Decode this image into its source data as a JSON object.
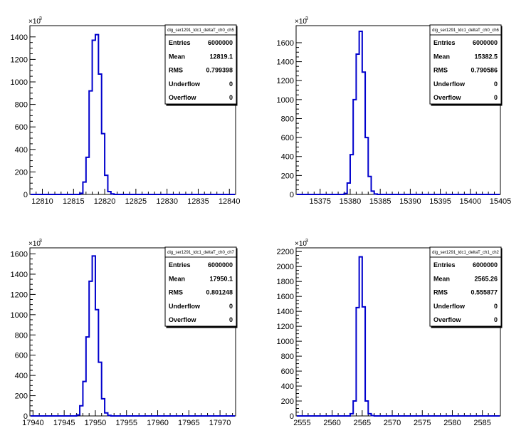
{
  "chart_data": [
    {
      "type": "bar",
      "histogram_name": "dig_ser1291_tdc1_deltaT_ch0_ch5",
      "stats": {
        "Entries": "6000000",
        "Mean": "12819.1",
        "RMS": "0.799398",
        "Underflow": "0",
        "Overflow": "0"
      },
      "y_exponent_label": "×10",
      "y_exponent_power": "3",
      "xlim": [
        12808,
        12841
      ],
      "ylim": [
        0,
        1500
      ],
      "x_ticks": [
        12810,
        12815,
        12820,
        12825,
        12830,
        12835,
        12840
      ],
      "y_ticks": [
        0,
        200,
        400,
        600,
        800,
        1000,
        1200,
        1400
      ],
      "bin_edges": [
        12816,
        12816.5,
        12817,
        12817.5,
        12818,
        12818.5,
        12819,
        12819.5,
        12820,
        12820.5,
        12821,
        12821.5
      ],
      "values": [
        10,
        110,
        330,
        920,
        1370,
        1420,
        1070,
        540,
        170,
        25,
        5
      ]
    },
    {
      "type": "bar",
      "histogram_name": "dig_ser1291_tdc1_deltaT_ch0_ch6",
      "stats": {
        "Entries": "6000000",
        "Mean": "15382.5",
        "RMS": "0.790586",
        "Underflow": "0",
        "Overflow": "0"
      },
      "y_exponent_label": "×10",
      "y_exponent_power": "3",
      "xlim": [
        15371,
        15405
      ],
      "ylim": [
        0,
        1780
      ],
      "x_ticks": [
        15375,
        15380,
        15385,
        15390,
        15395,
        15400,
        15405
      ],
      "y_ticks": [
        0,
        200,
        400,
        600,
        800,
        1000,
        1200,
        1400,
        1600
      ],
      "bin_edges": [
        15379,
        15379.5,
        15380,
        15380.5,
        15381,
        15381.5,
        15382,
        15382.5,
        15383,
        15383.5,
        15384,
        15384.5
      ],
      "values": [
        10,
        120,
        420,
        1000,
        1480,
        1720,
        1290,
        600,
        190,
        35,
        5
      ]
    },
    {
      "type": "bar",
      "histogram_name": "dig_ser1291_tdc1_deltaT_ch0_ch7",
      "stats": {
        "Entries": "6000000",
        "Mean": "17950.1",
        "RMS": "0.801248",
        "Underflow": "0",
        "Overflow": "0"
      },
      "y_exponent_label": "×10",
      "y_exponent_power": "3",
      "xlim": [
        17939.5,
        17972.5
      ],
      "ylim": [
        0,
        1660
      ],
      "x_ticks": [
        17940,
        17945,
        17950,
        17955,
        17960,
        17965,
        17970
      ],
      "y_ticks": [
        0,
        200,
        400,
        600,
        800,
        1000,
        1200,
        1400,
        1600
      ],
      "bin_edges": [
        17947,
        17947.5,
        17948,
        17948.5,
        17949,
        17949.5,
        17950,
        17950.5,
        17951,
        17951.5,
        17952,
        17952.5
      ],
      "values": [
        10,
        100,
        340,
        780,
        1330,
        1580,
        1050,
        530,
        170,
        30,
        5
      ]
    },
    {
      "type": "bar",
      "histogram_name": "dig_ser1291_tdc1_deltaT_ch1_ch2",
      "stats": {
        "Entries": "6000000",
        "Mean": "2565.26",
        "RMS": "0.555877",
        "Underflow": "0",
        "Overflow": "0"
      },
      "y_exponent_label": "×10",
      "y_exponent_power": "3",
      "xlim": [
        2554,
        2588
      ],
      "ylim": [
        0,
        2250
      ],
      "x_ticks": [
        2555,
        2560,
        2565,
        2570,
        2575,
        2580,
        2585
      ],
      "y_ticks": [
        0,
        200,
        400,
        600,
        800,
        1000,
        1200,
        1400,
        1600,
        1800,
        2000,
        2200
      ],
      "bin_edges": [
        2563,
        2563.5,
        2564,
        2564.5,
        2565,
        2565.5,
        2566,
        2566.5,
        2567
      ],
      "values": [
        30,
        200,
        1450,
        2130,
        1460,
        200,
        30,
        5
      ]
    }
  ]
}
